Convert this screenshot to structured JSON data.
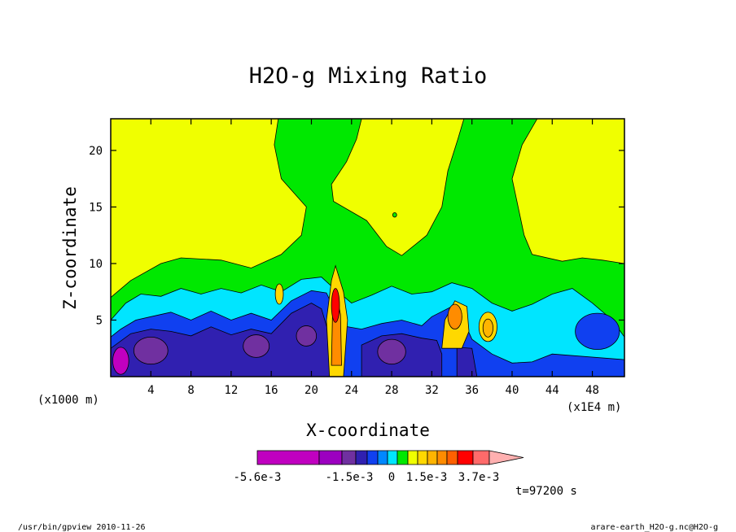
{
  "chart_data": {
    "type": "heatmap",
    "title": "H2O-g Mixing Ratio",
    "xlabel": "X-coordinate",
    "ylabel": "Z-coordinate",
    "x_unit_label": "(x1E4 m)",
    "y_unit_label": "(x1000 m)",
    "xlim": [
      0,
      51.2
    ],
    "ylim": [
      0,
      22.8
    ],
    "x_ticks": [
      4,
      8,
      12,
      16,
      20,
      24,
      28,
      32,
      36,
      40,
      44,
      48
    ],
    "y_ticks": [
      5,
      10,
      15,
      20
    ],
    "time_label": "t=97200 s",
    "colorbar": {
      "colors": [
        "#c000c0",
        "#9c00c0",
        "#7030a0",
        "#3020b0",
        "#1040f0",
        "#0088ff",
        "#00e5ff",
        "#00e800",
        "#f0ff00",
        "#ffd800",
        "#ffb400",
        "#ff8c00",
        "#ff6000",
        "#ff0000",
        "#ff6a6a",
        "#ffb0b0"
      ],
      "labels": [
        {
          "text": "-5.6e-3",
          "value": -0.0056
        },
        {
          "text": "-1.5e-3",
          "value": -0.0015
        },
        {
          "text": "0",
          "value": 0
        },
        {
          "text": "1.5e-3",
          "value": 0.0015
        },
        {
          "text": "3.7e-3",
          "value": 0.0037
        }
      ]
    },
    "field_regions": [
      {
        "name": "background",
        "color": "#f0ff00"
      },
      {
        "name": "upper-green-lobe",
        "color": "#00e800",
        "x_range": [
          16,
          37
        ],
        "z_range": [
          9,
          22.8
        ]
      },
      {
        "name": "lower-cyan-band",
        "color": "#00e5ff",
        "x_range": [
          0,
          51.2
        ],
        "z_range": [
          0,
          9
        ]
      },
      {
        "name": "low-level-dark-blue",
        "color": "#3020b0",
        "x_range": [
          0,
          51.2
        ],
        "z_range": [
          0,
          6
        ]
      },
      {
        "name": "updraft-core-1",
        "color": "#ff8c00",
        "x_range": [
          21,
          24
        ],
        "z_range": [
          0,
          10
        ]
      },
      {
        "name": "updraft-core-2",
        "color": "#ff8c00",
        "x_range": [
          33,
          36
        ],
        "z_range": [
          2,
          7
        ]
      },
      {
        "name": "updraft-core-3",
        "color": "#ffb400",
        "x_range": [
          37,
          39
        ],
        "z_range": [
          3,
          6
        ]
      }
    ]
  },
  "footer": {
    "left": "/usr/bin/gpview  2010-11-26",
    "right": "arare-earth_H2O-g.nc@H2O-g"
  }
}
